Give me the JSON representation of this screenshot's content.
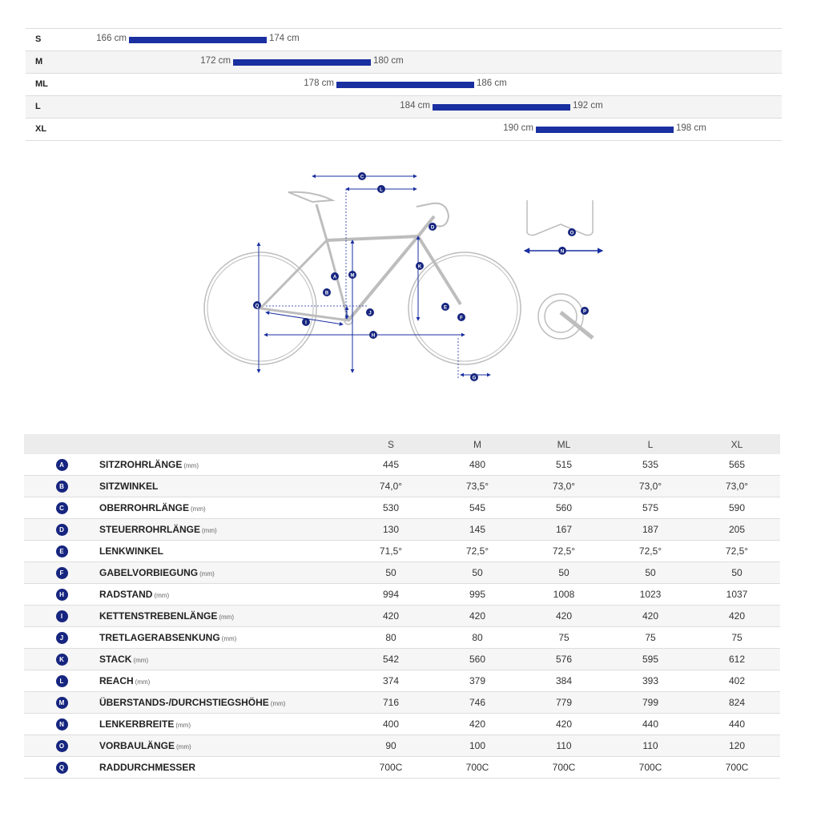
{
  "size_ranges": [
    {
      "size": "S",
      "min": "166 cm",
      "max": "174 cm"
    },
    {
      "size": "M",
      "min": "172 cm",
      "max": "180 cm"
    },
    {
      "size": "ML",
      "min": "178 cm",
      "max": "186 cm"
    },
    {
      "size": "L",
      "min": "184 cm",
      "max": "192 cm"
    },
    {
      "size": "XL",
      "min": "190 cm",
      "max": "198 cm"
    }
  ],
  "diagram": {
    "labels": [
      "A",
      "B",
      "C",
      "D",
      "E",
      "F",
      "G",
      "H",
      "I",
      "J",
      "K",
      "L",
      "M",
      "N",
      "O",
      "P",
      "Q"
    ],
    "accent": "#1a2fa0",
    "frame_color": "#bdbdbd"
  },
  "table": {
    "headers": [
      "",
      "",
      "S",
      "M",
      "ML",
      "L",
      "XL"
    ],
    "rows": [
      {
        "badge": "A",
        "label": "SITZROHRLÄNGE",
        "unit": "(mm)",
        "values": [
          "445",
          "480",
          "515",
          "535",
          "565"
        ]
      },
      {
        "badge": "B",
        "label": "SITZWINKEL",
        "unit": "",
        "values": [
          "74,0°",
          "73,5°",
          "73,0°",
          "73,0°",
          "73,0°"
        ]
      },
      {
        "badge": "C",
        "label": "OBERROHRLÄNGE",
        "unit": "(mm)",
        "values": [
          "530",
          "545",
          "560",
          "575",
          "590"
        ]
      },
      {
        "badge": "D",
        "label": "STEUERROHRLÄNGE",
        "unit": "(mm)",
        "values": [
          "130",
          "145",
          "167",
          "187",
          "205"
        ]
      },
      {
        "badge": "E",
        "label": "LENKWINKEL",
        "unit": "",
        "values": [
          "71,5°",
          "72,5°",
          "72,5°",
          "72,5°",
          "72,5°"
        ]
      },
      {
        "badge": "F",
        "label": "GABELVORBIEGUNG",
        "unit": "(mm)",
        "values": [
          "50",
          "50",
          "50",
          "50",
          "50"
        ]
      },
      {
        "badge": "H",
        "label": "RADSTAND",
        "unit": "(mm)",
        "values": [
          "994",
          "995",
          "1008",
          "1023",
          "1037"
        ]
      },
      {
        "badge": "I",
        "label": "KETTENSTREBENLÄNGE",
        "unit": "(mm)",
        "values": [
          "420",
          "420",
          "420",
          "420",
          "420"
        ]
      },
      {
        "badge": "J",
        "label": "TRETLAGERABSENKUNG",
        "unit": "(mm)",
        "values": [
          "80",
          "80",
          "75",
          "75",
          "75"
        ]
      },
      {
        "badge": "K",
        "label": "STACK",
        "unit": "(mm)",
        "values": [
          "542",
          "560",
          "576",
          "595",
          "612"
        ]
      },
      {
        "badge": "L",
        "label": "REACH",
        "unit": "(mm)",
        "values": [
          "374",
          "379",
          "384",
          "393",
          "402"
        ]
      },
      {
        "badge": "M",
        "label": "ÜBERSTANDS-/DURCHSTIEGSHÖHE",
        "unit": "(mm)",
        "values": [
          "716",
          "746",
          "779",
          "799",
          "824"
        ]
      },
      {
        "badge": "N",
        "label": "LENKERBREITE",
        "unit": "(mm)",
        "values": [
          "400",
          "420",
          "420",
          "440",
          "440"
        ]
      },
      {
        "badge": "O",
        "label": "VORBAULÄNGE",
        "unit": "(mm)",
        "values": [
          "90",
          "100",
          "110",
          "110",
          "120"
        ]
      },
      {
        "badge": "Q",
        "label": "RADDURCHMESSER",
        "unit": "",
        "values": [
          "700C",
          "700C",
          "700C",
          "700C",
          "700C"
        ]
      }
    ]
  }
}
